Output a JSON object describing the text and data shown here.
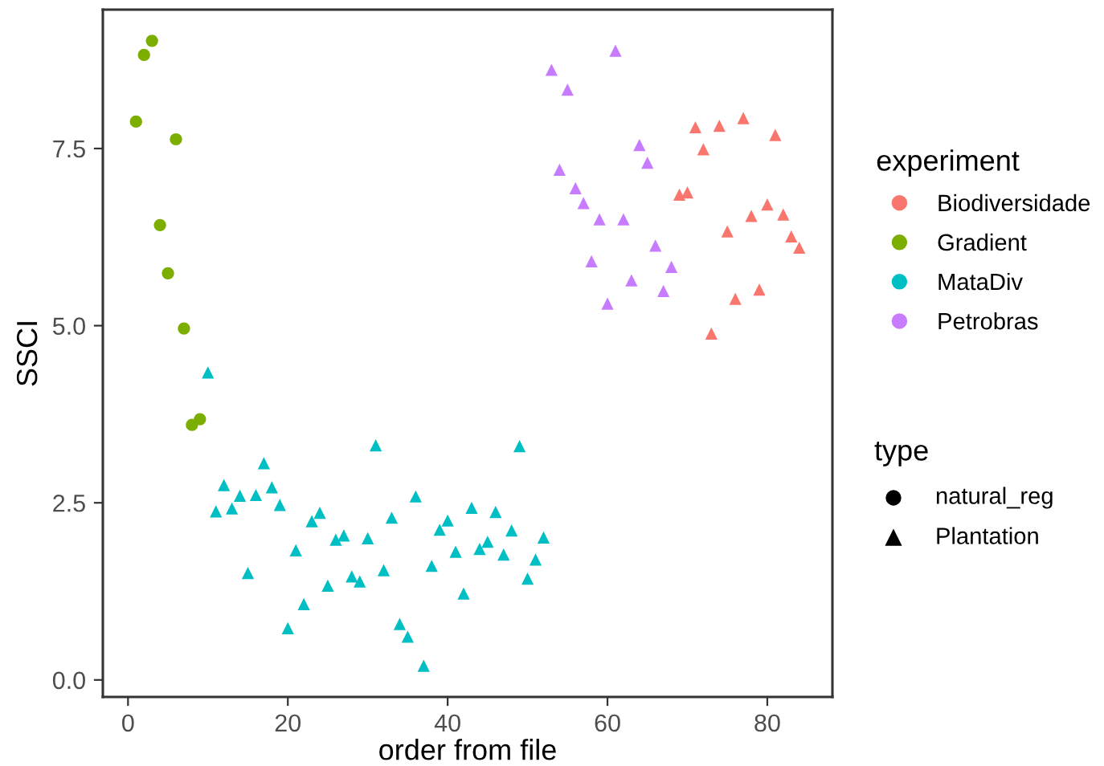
{
  "chart_data": {
    "type": "scatter",
    "xlabel": "order from file",
    "ylabel": "SSCI",
    "xlim": [
      -3.15,
      88.15
    ],
    "ylim": [
      -0.24,
      9.46
    ],
    "xticks": [
      0,
      20,
      40,
      60,
      80
    ],
    "yticks": [
      {
        "value": 0,
        "label": "0.0"
      },
      {
        "value": 2.5,
        "label": "2.5"
      },
      {
        "value": 5,
        "label": "5.0"
      },
      {
        "value": 7.5,
        "label": "7.5"
      }
    ],
    "grid": false,
    "legend": "right",
    "legend_title": [
      "experiment",
      "type"
    ],
    "annotations": [
      "natural_reg",
      "Plantation"
    ],
    "series": [
      {
        "name": "Biodiversidade",
        "color": "#f8766d",
        "marker": "triangle",
        "x": [
          69,
          70,
          71,
          72,
          73,
          74,
          75,
          76,
          77,
          78,
          79,
          80,
          81,
          82,
          83,
          84
        ],
        "values": [
          6.85,
          6.88,
          7.8,
          7.49,
          4.89,
          7.82,
          6.33,
          5.38,
          7.93,
          6.55,
          5.51,
          6.71,
          7.69,
          6.57,
          6.26,
          6.1
        ]
      },
      {
        "name": "Gradient",
        "color": "#7cae00",
        "marker": "circle",
        "x": [
          1,
          2,
          3,
          4,
          5,
          6,
          7,
          8,
          9
        ],
        "values": [
          7.88,
          8.82,
          9.02,
          6.42,
          5.74,
          7.63,
          4.96,
          3.6,
          3.68
        ]
      },
      {
        "name": "MataDiv",
        "color": "#00bfc4",
        "marker": "triangle",
        "x": [
          10,
          11,
          12,
          13,
          14,
          15,
          16,
          17,
          18,
          19,
          20,
          21,
          22,
          23,
          24,
          25,
          26,
          27,
          28,
          29,
          30,
          31,
          32,
          33,
          34,
          35,
          36,
          37,
          38,
          39,
          40,
          41,
          42,
          43,
          44,
          45,
          46,
          47,
          48,
          49,
          50,
          51,
          52
        ],
        "values": [
          4.34,
          2.38,
          2.75,
          2.42,
          2.6,
          1.51,
          2.61,
          3.06,
          2.72,
          2.47,
          0.73,
          1.83,
          1.07,
          2.24,
          2.36,
          1.33,
          1.98,
          2.04,
          1.46,
          1.39,
          2.0,
          3.31,
          1.55,
          2.29,
          0.79,
          0.61,
          2.59,
          0.2,
          1.61,
          2.12,
          2.25,
          1.81,
          1.22,
          2.43,
          1.85,
          1.95,
          2.37,
          1.77,
          2.11,
          3.3,
          1.43,
          1.7,
          2.01
        ]
      },
      {
        "name": "Petrobras",
        "color": "#c77cff",
        "marker": "triangle",
        "x": [
          53,
          54,
          55,
          56,
          57,
          58,
          59,
          60,
          61,
          62,
          63,
          64,
          65,
          66,
          67,
          68
        ],
        "values": [
          8.61,
          7.2,
          8.33,
          6.94,
          6.73,
          5.91,
          6.5,
          5.31,
          8.88,
          6.5,
          5.64,
          7.55,
          7.3,
          6.13,
          5.49,
          5.83
        ]
      }
    ]
  }
}
